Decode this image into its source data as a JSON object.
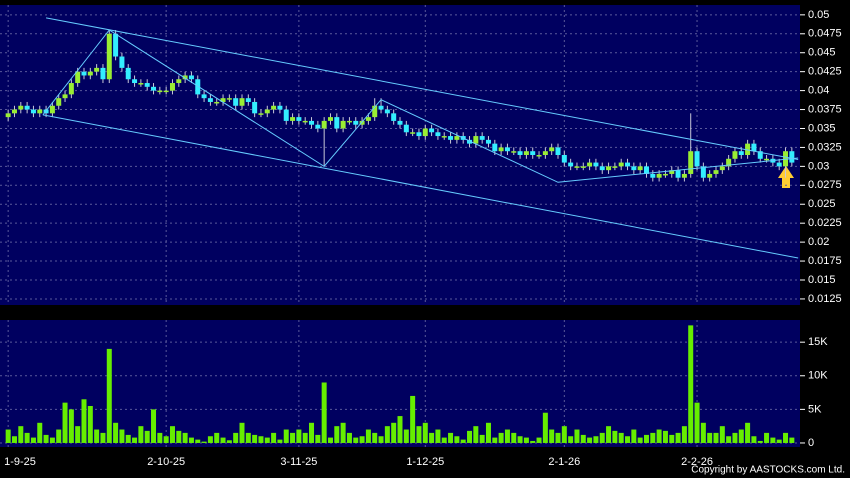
{
  "chart_data": [
    {
      "type": "candlestick",
      "categories": [
        "1-9-25",
        null,
        null,
        null,
        null,
        null,
        null,
        null,
        null,
        null,
        null,
        null,
        null,
        null,
        null,
        null,
        null,
        null,
        null,
        null,
        null,
        null,
        null,
        null,
        null,
        "2-10-25",
        null,
        null,
        null,
        null,
        null,
        null,
        null,
        null,
        null,
        null,
        null,
        null,
        null,
        null,
        null,
        null,
        null,
        null,
        null,
        null,
        "3-11-25",
        null,
        null,
        null,
        null,
        null,
        null,
        null,
        null,
        null,
        null,
        null,
        null,
        null,
        null,
        null,
        null,
        null,
        null,
        null,
        "1-12-25",
        null,
        null,
        null,
        null,
        null,
        null,
        null,
        null,
        null,
        null,
        null,
        null,
        null,
        null,
        null,
        null,
        null,
        null,
        null,
        null,
        null,
        "2-1-26",
        null,
        null,
        null,
        null,
        null,
        null,
        null,
        null,
        null,
        null,
        null,
        null,
        null,
        null,
        null,
        null,
        null,
        null,
        null,
        null,
        "2-2-26",
        null,
        null,
        null,
        null,
        null,
        null,
        null,
        null,
        null,
        null,
        null,
        null,
        null,
        null,
        null
      ],
      "open": [
        0.0365,
        0.037,
        0.0375,
        0.038,
        0.0375,
        0.037,
        0.0375,
        0.037,
        0.038,
        0.039,
        0.0395,
        0.041,
        0.0425,
        0.042,
        0.0425,
        0.043,
        0.0415,
        0.0475,
        0.0445,
        0.043,
        0.0415,
        0.041,
        0.041,
        0.0405,
        0.04,
        0.04,
        0.04,
        0.041,
        0.0415,
        0.042,
        0.0415,
        0.0395,
        0.039,
        0.0385,
        0.0385,
        0.039,
        0.039,
        0.038,
        0.039,
        0.0385,
        0.037,
        0.037,
        0.0375,
        0.038,
        0.0375,
        0.036,
        0.0365,
        0.036,
        0.036,
        0.0355,
        0.035,
        0.036,
        0.0365,
        0.035,
        0.036,
        0.036,
        0.0355,
        0.036,
        0.0365,
        0.038,
        0.0375,
        0.037,
        0.036,
        0.0355,
        0.0345,
        0.0345,
        0.034,
        0.035,
        0.0345,
        0.034,
        0.034,
        0.0335,
        0.034,
        0.0335,
        0.033,
        0.034,
        0.0335,
        0.033,
        0.032,
        0.0325,
        0.032,
        0.032,
        0.0315,
        0.032,
        0.0315,
        0.0315,
        0.032,
        0.0325,
        0.0315,
        0.0305,
        0.03,
        0.03,
        0.03,
        0.0305,
        0.03,
        0.0295,
        0.03,
        0.03,
        0.0305,
        0.03,
        0.0295,
        0.03,
        0.029,
        0.0285,
        0.029,
        0.029,
        0.0295,
        0.0285,
        0.029,
        0.032,
        0.03,
        0.0285,
        0.029,
        0.0295,
        0.03,
        0.031,
        0.032,
        0.0315,
        0.033,
        0.032,
        0.031,
        0.031,
        0.0305,
        0.03,
        0.032
      ],
      "high": [
        0.0375,
        0.038,
        0.0385,
        0.0385,
        0.038,
        0.038,
        0.038,
        0.0385,
        0.0395,
        0.04,
        0.0415,
        0.043,
        0.043,
        0.043,
        0.0435,
        0.0435,
        0.048,
        0.048,
        0.045,
        0.0435,
        0.042,
        0.0415,
        0.0415,
        0.041,
        0.0405,
        0.0405,
        0.0415,
        0.042,
        0.0425,
        0.0425,
        0.042,
        0.04,
        0.0395,
        0.039,
        0.0395,
        0.0395,
        0.0395,
        0.0395,
        0.0395,
        0.039,
        0.0375,
        0.038,
        0.0385,
        0.0385,
        0.038,
        0.037,
        0.037,
        0.0365,
        0.0365,
        0.036,
        0.0365,
        0.037,
        0.037,
        0.0365,
        0.0365,
        0.0365,
        0.0365,
        0.037,
        0.039,
        0.039,
        0.038,
        0.0375,
        0.0365,
        0.036,
        0.035,
        0.035,
        0.0355,
        0.0355,
        0.035,
        0.0345,
        0.0345,
        0.0345,
        0.0345,
        0.034,
        0.0345,
        0.0345,
        0.034,
        0.0335,
        0.033,
        0.033,
        0.0325,
        0.0325,
        0.0325,
        0.0325,
        0.032,
        0.0325,
        0.033,
        0.033,
        0.032,
        0.031,
        0.0305,
        0.0305,
        0.031,
        0.031,
        0.0305,
        0.0305,
        0.0305,
        0.031,
        0.031,
        0.0305,
        0.0305,
        0.0305,
        0.0295,
        0.0295,
        0.0295,
        0.03,
        0.03,
        0.0295,
        0.037,
        0.0325,
        0.0305,
        0.0295,
        0.03,
        0.0305,
        0.0315,
        0.0325,
        0.0325,
        0.0335,
        0.0335,
        0.0325,
        0.0315,
        0.0315,
        0.031,
        0.0325,
        0.0325
      ],
      "low": [
        0.036,
        0.0365,
        0.037,
        0.037,
        0.0365,
        0.0365,
        0.0365,
        0.0365,
        0.0375,
        0.0385,
        0.039,
        0.0405,
        0.0415,
        0.0415,
        0.042,
        0.041,
        0.041,
        0.044,
        0.0425,
        0.041,
        0.0405,
        0.0405,
        0.04,
        0.0395,
        0.0395,
        0.0395,
        0.0395,
        0.0405,
        0.041,
        0.041,
        0.039,
        0.0385,
        0.038,
        0.038,
        0.038,
        0.0385,
        0.0375,
        0.0375,
        0.038,
        0.0365,
        0.0365,
        0.0365,
        0.037,
        0.037,
        0.0355,
        0.0355,
        0.0355,
        0.0355,
        0.035,
        0.0345,
        0.03,
        0.0355,
        0.0345,
        0.0345,
        0.0355,
        0.035,
        0.035,
        0.0355,
        0.036,
        0.037,
        0.0365,
        0.0355,
        0.035,
        0.034,
        0.034,
        0.0335,
        0.0335,
        0.034,
        0.0335,
        0.0335,
        0.033,
        0.033,
        0.033,
        0.0325,
        0.0325,
        0.033,
        0.0325,
        0.0315,
        0.0315,
        0.0315,
        0.0315,
        0.031,
        0.031,
        0.031,
        0.031,
        0.031,
        0.0315,
        0.031,
        0.03,
        0.0295,
        0.0295,
        0.0295,
        0.0295,
        0.0295,
        0.029,
        0.029,
        0.0295,
        0.0295,
        0.0295,
        0.029,
        0.029,
        0.0285,
        0.028,
        0.028,
        0.0285,
        0.0285,
        0.028,
        0.028,
        0.0285,
        0.0295,
        0.028,
        0.028,
        0.0285,
        0.029,
        0.0295,
        0.0305,
        0.031,
        0.031,
        0.0315,
        0.0305,
        0.0305,
        0.03,
        0.0295,
        0.0285,
        0.03
      ],
      "close": [
        0.037,
        0.0375,
        0.038,
        0.0375,
        0.037,
        0.0375,
        0.037,
        0.038,
        0.039,
        0.0395,
        0.041,
        0.0425,
        0.042,
        0.0425,
        0.043,
        0.0415,
        0.0475,
        0.0445,
        0.043,
        0.0415,
        0.041,
        0.041,
        0.0405,
        0.04,
        0.04,
        0.04,
        0.041,
        0.0415,
        0.042,
        0.0415,
        0.0395,
        0.039,
        0.0385,
        0.0385,
        0.039,
        0.039,
        0.038,
        0.039,
        0.0385,
        0.037,
        0.037,
        0.0375,
        0.038,
        0.0375,
        0.036,
        0.0365,
        0.036,
        0.036,
        0.0355,
        0.035,
        0.036,
        0.0365,
        0.035,
        0.036,
        0.036,
        0.0355,
        0.036,
        0.0365,
        0.038,
        0.0375,
        0.037,
        0.036,
        0.0355,
        0.0345,
        0.0345,
        0.034,
        0.035,
        0.0345,
        0.034,
        0.034,
        0.0335,
        0.034,
        0.0335,
        0.033,
        0.034,
        0.0335,
        0.033,
        0.032,
        0.0325,
        0.032,
        0.032,
        0.0315,
        0.032,
        0.0315,
        0.0315,
        0.032,
        0.0325,
        0.0315,
        0.0305,
        0.03,
        0.03,
        0.03,
        0.0305,
        0.03,
        0.0295,
        0.03,
        0.03,
        0.0305,
        0.03,
        0.0295,
        0.03,
        0.029,
        0.0285,
        0.029,
        0.029,
        0.0295,
        0.0285,
        0.029,
        0.032,
        0.03,
        0.0285,
        0.029,
        0.0295,
        0.03,
        0.031,
        0.032,
        0.0315,
        0.033,
        0.032,
        0.031,
        0.031,
        0.0305,
        0.03,
        0.032,
        0.0305
      ],
      "up_color": "#99ee33",
      "down_color": "#33eeff",
      "wick_color": "#c8c8d8",
      "ylim": [
        0.0117,
        0.0513
      ],
      "yticks": [
        0.05,
        0.0475,
        0.045,
        0.0425,
        0.04,
        0.0375,
        0.035,
        0.0325,
        0.03,
        0.0275,
        0.025,
        0.0225,
        0.02,
        0.0175,
        0.015,
        0.0125
      ],
      "grid": true,
      "trendlines": [
        {
          "color": "#66ccff",
          "x": [
            6,
            125
          ],
          "y": [
            0.0496,
            0.0309
          ]
        },
        {
          "color": "#66ccff",
          "x": [
            5.5,
            125
          ],
          "y": [
            0.0368,
            0.0179
          ]
        },
        {
          "color": "#66ccff",
          "x": [
            5.5,
            16,
            50,
            59,
            87,
            125
          ],
          "y": [
            0.0368,
            0.048,
            0.03,
            0.0388,
            0.0279,
            0.0311
          ]
        }
      ],
      "copyright": "Copyright by AASTOCKS.com Ltd."
    },
    {
      "type": "bar",
      "color": "#66ee00",
      "values": [
        2000,
        1000,
        2500,
        1500,
        800,
        3000,
        1200,
        800,
        2000,
        6000,
        5000,
        2500,
        6500,
        5500,
        2000,
        1500,
        14000,
        3000,
        2000,
        1200,
        800,
        2500,
        1800,
        5000,
        1500,
        1000,
        2500,
        1800,
        1500,
        800,
        500,
        200,
        1000,
        1500,
        800,
        400,
        1500,
        3000,
        1500,
        1200,
        1000,
        800,
        1500,
        500,
        2000,
        1500,
        2000,
        1500,
        3000,
        1200,
        9000,
        800,
        2500,
        3000,
        1500,
        800,
        1000,
        2000,
        1500,
        1000,
        2500,
        3000,
        4000,
        2000,
        7000,
        2500,
        3000,
        1500,
        2000,
        800,
        1500,
        1000,
        500,
        1800,
        2500,
        1200,
        3000,
        800,
        1500,
        2000,
        1500,
        1000,
        800,
        300,
        800,
        4500,
        2000,
        1500,
        2500,
        1000,
        2000,
        1200,
        800,
        1000,
        1500,
        2500,
        1800,
        1500,
        1000,
        2000,
        800,
        1200,
        1500,
        2000,
        1800,
        1200,
        1500,
        2500,
        17500,
        6000,
        3000,
        1500,
        1500,
        2500,
        1000,
        1500,
        2000,
        3000,
        1000,
        300,
        1500,
        800,
        500,
        1500,
        800
      ],
      "ylim": [
        -600,
        18300
      ],
      "yticks": [
        0,
        {
          "value": 5000,
          "label": "5K"
        },
        {
          "value": 10000,
          "label": "10K"
        },
        {
          "value": 15000,
          "label": "15K"
        }
      ],
      "grid": true
    }
  ]
}
